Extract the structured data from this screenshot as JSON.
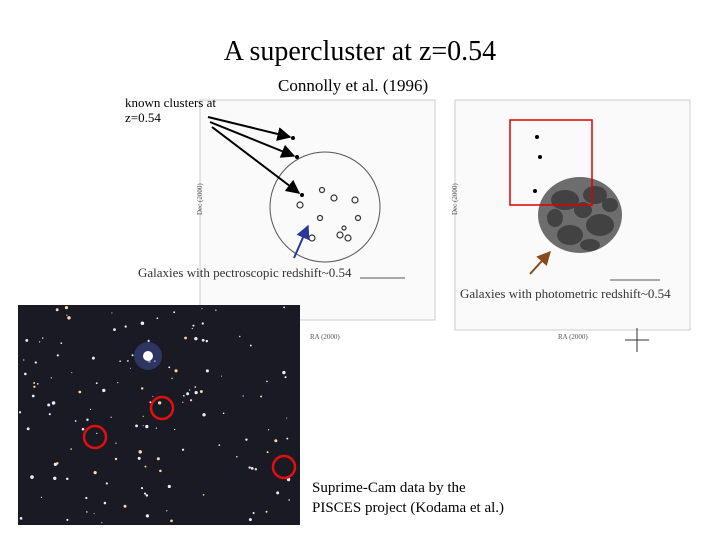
{
  "title": "A supercluster at z=0.54",
  "citation": "Connolly et al. (1996)",
  "known_clusters": [
    "known clusters at",
    "z=0.54"
  ],
  "spectroscopic_label": "Galaxies with pectroscopic redshift~0.54",
  "photometric_label": "Galaxies with photometric redshift~0.54",
  "credit": [
    "Suprime-Cam data by the",
    "PISCES project (Kodama et al.)"
  ],
  "left_plot": {
    "y_label": "Dec (2000)",
    "x_label": "RA (2000)"
  },
  "right_plot": {
    "y_label": "Dec (2000)",
    "x_label": "RA (2000)"
  }
}
